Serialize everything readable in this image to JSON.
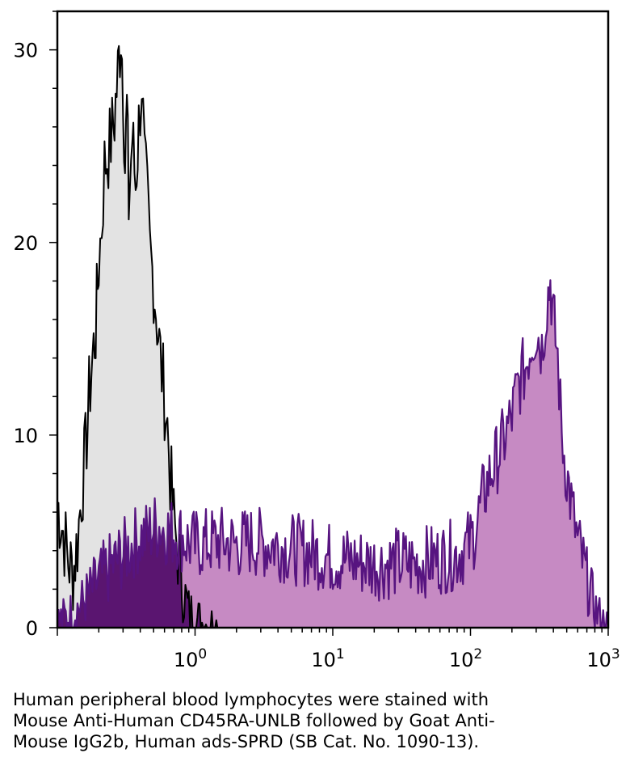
{
  "chart_data": {
    "type": "area",
    "title": "",
    "xlabel": "",
    "ylabel": "",
    "x_scale": "log",
    "xlim": [
      0.1,
      1000
    ],
    "ylim": [
      0,
      32
    ],
    "x_ticks": [
      {
        "value": 1,
        "base": "10",
        "exp": "0"
      },
      {
        "value": 10,
        "base": "10",
        "exp": "1"
      },
      {
        "value": 100,
        "base": "10",
        "exp": "2"
      },
      {
        "value": 1000,
        "base": "10",
        "exp": "3"
      }
    ],
    "y_ticks": [
      {
        "value": 0,
        "label": "0"
      },
      {
        "value": 10,
        "label": "10"
      },
      {
        "value": 20,
        "label": "20"
      },
      {
        "value": 30,
        "label": "30"
      }
    ],
    "grid": false,
    "legend": "none",
    "series": [
      {
        "role": "control",
        "fill": "#e3e3e3",
        "line": "#000000",
        "x": [
          0.1,
          0.11,
          0.12,
          0.13,
          0.14,
          0.15,
          0.16,
          0.17,
          0.18,
          0.19,
          0.2,
          0.21,
          0.22,
          0.24,
          0.26,
          0.28,
          0.29,
          0.3,
          0.31,
          0.32,
          0.33,
          0.35,
          0.37,
          0.39,
          0.41,
          0.43,
          0.45,
          0.47,
          0.5,
          0.53,
          0.56,
          0.6,
          0.63,
          0.66,
          0.7,
          0.75,
          0.8,
          0.85,
          0.9,
          1.0,
          1.1,
          1.2,
          1.4,
          1.6
        ],
        "y": [
          6.5,
          5.0,
          3.5,
          2.8,
          4.5,
          7.0,
          9.0,
          12.0,
          14.0,
          15.5,
          19.0,
          21.0,
          24.0,
          25.0,
          26.5,
          29.5,
          31.0,
          28.5,
          24.0,
          27.0,
          22.0,
          25.5,
          23.0,
          26.0,
          28.5,
          24.0,
          22.0,
          19.5,
          18.0,
          16.0,
          14.0,
          12.0,
          10.5,
          8.0,
          5.5,
          4.0,
          2.5,
          1.5,
          0.8,
          0.5,
          0.3,
          0.2,
          0.1,
          0.0
        ]
      },
      {
        "role": "stained",
        "fill": "#c68ac3",
        "line": "#571480",
        "x": [
          0.1,
          0.12,
          0.14,
          0.16,
          0.18,
          0.2,
          0.22,
          0.25,
          0.28,
          0.32,
          0.36,
          0.4,
          0.45,
          0.5,
          0.55,
          0.6,
          0.65,
          0.7,
          0.8,
          0.9,
          1.0,
          1.2,
          1.5,
          2.0,
          2.5,
          3.0,
          4.0,
          5.0,
          6.0,
          7.0,
          8.0,
          10,
          13,
          16,
          20,
          25,
          30,
          40,
          50,
          60,
          70,
          80,
          90,
          100,
          110,
          120,
          140,
          160,
          180,
          200,
          220,
          250,
          280,
          300,
          330,
          360,
          380,
          400,
          430,
          460,
          500,
          550,
          600,
          700,
          800,
          900,
          1000
        ],
        "y": [
          0.3,
          0.6,
          1.0,
          1.5,
          2.0,
          2.5,
          2.8,
          3.2,
          3.6,
          4.0,
          4.4,
          4.7,
          4.8,
          5.2,
          5.3,
          5.1,
          5.0,
          4.9,
          4.7,
          4.4,
          4.3,
          4.4,
          4.5,
          4.3,
          4.5,
          4.4,
          4.3,
          4.1,
          4.0,
          3.9,
          3.8,
          3.6,
          3.5,
          3.4,
          3.3,
          3.3,
          3.4,
          3.3,
          3.5,
          3.6,
          3.7,
          3.8,
          4.1,
          4.4,
          5.2,
          6.5,
          8.0,
          9.0,
          10.0,
          11.0,
          12.5,
          13.5,
          15.0,
          15.5,
          14.5,
          17.0,
          18.0,
          16.0,
          14.0,
          10.0,
          8.0,
          6.0,
          4.5,
          2.5,
          1.0,
          0.3,
          0.0
        ]
      }
    ]
  },
  "caption": {
    "lines": [
      "Human peripheral blood lymphocytes were stained with",
      "Mouse Anti-Human CD45RA-UNLB followed by Goat Anti-",
      "Mouse IgG2b, Human ads-SPRD (SB Cat. No. 1090-13)."
    ]
  }
}
